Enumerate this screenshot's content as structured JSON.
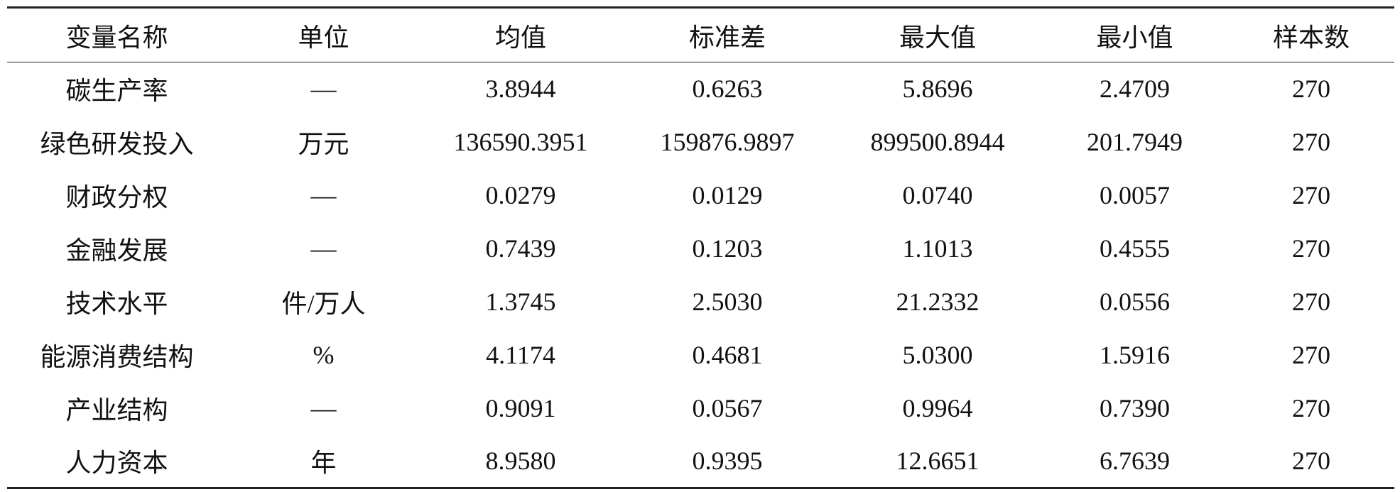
{
  "table": {
    "header": [
      "变量名称",
      "单位",
      "均值",
      "标准差",
      "最大值",
      "最小值",
      "样本数"
    ],
    "rows": [
      [
        "碳生产率",
        "—",
        "3.8944",
        "0.6263",
        "5.8696",
        "2.4709",
        "270"
      ],
      [
        "绿色研发投入",
        "万元",
        "136590.3951",
        "159876.9897",
        "899500.8944",
        "201.7949",
        "270"
      ],
      [
        "财政分权",
        "—",
        "0.0279",
        "0.0129",
        "0.0740",
        "0.0057",
        "270"
      ],
      [
        "金融发展",
        "—",
        "0.7439",
        "0.1203",
        "1.1013",
        "0.4555",
        "270"
      ],
      [
        "技术水平",
        "件/万人",
        "1.3745",
        "2.5030",
        "21.2332",
        "0.0556",
        "270"
      ],
      [
        "能源消费结构",
        "%",
        "4.1174",
        "0.4681",
        "5.0300",
        "1.5916",
        "270"
      ],
      [
        "产业结构",
        "—",
        "0.9091",
        "0.0567",
        "0.9964",
        "0.7390",
        "270"
      ],
      [
        "人力资本",
        "年",
        "8.9580",
        "0.9395",
        "12.6651",
        "6.7639",
        "270"
      ]
    ]
  }
}
